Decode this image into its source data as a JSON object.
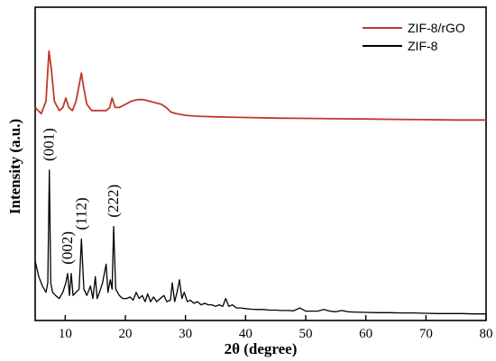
{
  "chart_data": {
    "type": "line",
    "title": "",
    "xlabel": "2θ (degree)",
    "ylabel": "Intensity (a.u.)",
    "xlim": [
      5,
      80
    ],
    "ylim": [
      0,
      100
    ],
    "x_ticks": [
      "10",
      "20",
      "30",
      "40",
      "50",
      "60",
      "70",
      "80"
    ],
    "x_tick_values": [
      10,
      20,
      30,
      40,
      50,
      60,
      70,
      80
    ],
    "y_tick_labels_visible": false,
    "grid": false,
    "legend_position": "top-right",
    "series": [
      {
        "name": "ZIF-8/rGO",
        "color": "#c0392b",
        "x": [
          5,
          6,
          6.8,
          7.3,
          7.7,
          8.2,
          9,
          9.6,
          10.1,
          10.6,
          11.2,
          11.8,
          12.4,
          12.7,
          13.1,
          13.6,
          14.4,
          15.2,
          16,
          16.8,
          17.4,
          17.8,
          18.3,
          19,
          20,
          21,
          22,
          23,
          24,
          25,
          26,
          26.8,
          27.6,
          28.5,
          30,
          32,
          35,
          40,
          45,
          50,
          55,
          60,
          65,
          70,
          75,
          80
        ],
        "y": [
          68,
          66,
          70,
          86,
          80,
          70,
          67,
          68,
          71,
          68,
          67,
          70,
          76,
          79,
          74,
          69,
          67,
          67,
          67,
          67,
          68,
          71,
          68,
          68,
          69,
          70,
          70.5,
          70.5,
          70,
          69.5,
          69,
          68,
          66.5,
          66,
          65.5,
          65.2,
          65,
          64.8,
          64.6,
          64.5,
          64.4,
          64.3,
          64.2,
          64.1,
          64,
          64
        ]
      },
      {
        "name": "ZIF-8",
        "color": "#000000",
        "x": [
          5,
          5.6,
          6.2,
          6.8,
          7.1,
          7.35,
          7.6,
          7.9,
          8.4,
          9,
          9.6,
          10.1,
          10.4,
          10.7,
          11,
          11.3,
          11.8,
          12.3,
          12.7,
          13.1,
          13.6,
          14.2,
          14.6,
          15,
          15.3,
          15.7,
          16.2,
          16.8,
          17.1,
          17.5,
          17.8,
          18.05,
          18.4,
          19,
          19.6,
          20.2,
          20.8,
          21.3,
          21.8,
          22.3,
          22.8,
          23.3,
          23.7,
          24.2,
          24.7,
          25.2,
          25.8,
          26.4,
          26.9,
          27.5,
          27.8,
          28.2,
          28.6,
          29,
          29.4,
          29.8,
          30.3,
          30.8,
          31.4,
          32,
          32.6,
          33.2,
          33.8,
          34.4,
          35,
          35.6,
          36.2,
          36.7,
          37.2,
          37.8,
          38.5,
          39.2,
          40,
          41,
          42,
          43,
          44,
          45,
          46,
          47,
          48,
          49,
          50,
          51,
          52,
          53,
          54,
          55,
          56,
          57,
          58,
          60,
          62,
          64,
          66,
          68,
          70,
          72,
          74,
          76,
          78,
          80
        ],
        "y": [
          19,
          14,
          11,
          9,
          12,
          48,
          12,
          9,
          8,
          7,
          9,
          12,
          15,
          8,
          15,
          8,
          9,
          10,
          26,
          10,
          8,
          11,
          7,
          14,
          7,
          9,
          12,
          18,
          9,
          13,
          10,
          30,
          10,
          8,
          7,
          7,
          7.5,
          6.5,
          9,
          7,
          8,
          6,
          8.5,
          6,
          7.5,
          6,
          7,
          8,
          6,
          6.5,
          12,
          6,
          9,
          13,
          7,
          9,
          6,
          6.5,
          5.5,
          6,
          5,
          5.5,
          5,
          5,
          4.5,
          5,
          4.5,
          7,
          4.5,
          5,
          4,
          4,
          3.8,
          3.6,
          3.5,
          3.5,
          3.3,
          3.3,
          3.2,
          3.2,
          3.1,
          4,
          3,
          3,
          3,
          3.5,
          3,
          2.8,
          3.2,
          2.8,
          2.7,
          2.6,
          2.5,
          2.5,
          2.4,
          2.4,
          2.3,
          2.2,
          2.2,
          2.2,
          2.1,
          2.1
        ]
      }
    ],
    "annotations": [
      {
        "text": "(001)",
        "x": 7.35
      },
      {
        "text": "(002)",
        "x": 10.4
      },
      {
        "text": "(112)",
        "x": 12.7
      },
      {
        "text": "(222)",
        "x": 18.05
      }
    ]
  }
}
